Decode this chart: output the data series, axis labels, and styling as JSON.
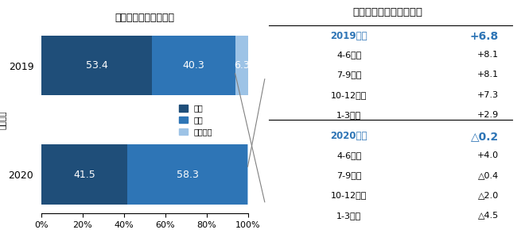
{
  "title_left": "売上高動向　企業割合",
  "ylabel_left": "（年度）",
  "title_right": "全産業売上高伸び率平均",
  "bar_years": [
    "2020",
    "2019"
  ],
  "bar_data": {
    "増収": [
      41.5,
      53.4
    ],
    "減収": [
      58.3,
      40.3
    ],
    "前期並み": [
      0.2,
      6.3
    ]
  },
  "colors": {
    "増収": "#1F4E79",
    "減収": "#2E75B6",
    "前期並み": "#9DC3E6"
  },
  "header_color": "#2E75B6",
  "normal_color": "#000000",
  "bg_color": "#FFFFFF",
  "rows": [
    {
      "label": "2019年度",
      "value": "+6.8",
      "is_header": true,
      "bold_val": true,
      "divider": false
    },
    {
      "label": "4-6月期",
      "value": "+8.1",
      "is_header": false,
      "bold_val": false,
      "divider": false
    },
    {
      "label": "7-9月期",
      "value": "+8.1",
      "is_header": false,
      "bold_val": false,
      "divider": false
    },
    {
      "label": "10-12月期",
      "value": "+7.3",
      "is_header": false,
      "bold_val": false,
      "divider": false
    },
    {
      "label": "1-3月期",
      "value": "+2.9",
      "is_header": false,
      "bold_val": false,
      "divider": false
    },
    {
      "label": "2020年度",
      "value": "△0.2",
      "is_header": true,
      "bold_val": true,
      "divider": true
    },
    {
      "label": "4-6月期",
      "value": "+4.0",
      "is_header": false,
      "bold_val": false,
      "divider": false
    },
    {
      "label": "7-9月期",
      "value": "△0.4",
      "is_header": false,
      "bold_val": false,
      "divider": false
    },
    {
      "label": "10-12月期",
      "value": "△2.0",
      "is_header": false,
      "bold_val": false,
      "divider": false
    },
    {
      "label": "1-3月期",
      "value": "△4.5",
      "is_header": false,
      "bold_val": false,
      "divider": false
    }
  ]
}
